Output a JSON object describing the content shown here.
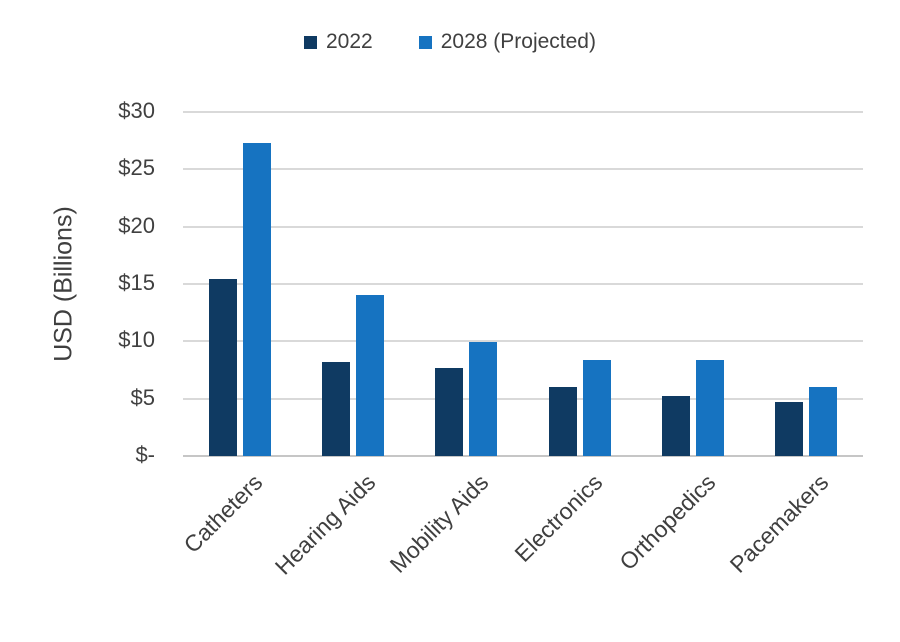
{
  "page": {
    "background": "#ffffff"
  },
  "chart_data": {
    "type": "bar",
    "ylabel": "USD (Billions)",
    "categories": [
      "Catheters",
      "Hearing Aids",
      "Mobility Aids",
      "Electronics",
      "Orthopedics",
      "Pacemakers"
    ],
    "series": [
      {
        "name": "2022",
        "color": "#0f3a62",
        "values": [
          15.4,
          8.2,
          7.7,
          6.0,
          5.2,
          4.7
        ]
      },
      {
        "name": "2028 (Projected)",
        "color": "#1673c1",
        "values": [
          27.3,
          14.0,
          9.9,
          8.4,
          8.4,
          6.0
        ]
      }
    ],
    "ylim": [
      0,
      30
    ],
    "ytick_step": 5,
    "ytick_labels": [
      "$-",
      "$5",
      "$10",
      "$15",
      "$20",
      "$25",
      "$30"
    ],
    "grid": true,
    "legend_position": "top",
    "colors": {
      "text": "#404040",
      "gridline": "#d9d9d9",
      "axis_line": "#c6c6c6"
    }
  }
}
